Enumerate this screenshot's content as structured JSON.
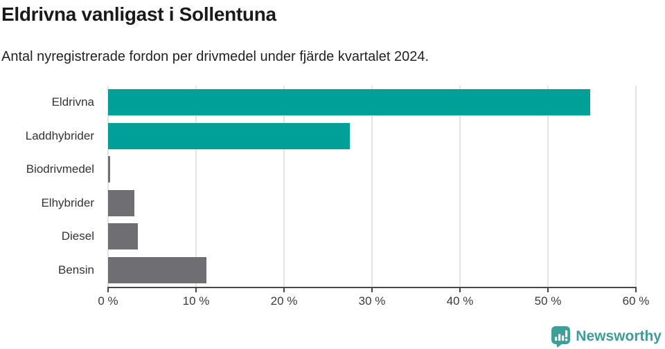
{
  "header": {
    "title": "Eldrivna vanligast i Sollentuna",
    "subtitle": "Antal nyregistrerade fordon per drivmedel under fjärde kvartalet 2024."
  },
  "chart_data": {
    "type": "bar",
    "orientation": "horizontal",
    "title": "Eldrivna vanligast i Sollentuna",
    "subtitle": "Antal nyregistrerade fordon per drivmedel under fjärde kvartalet 2024.",
    "categories": [
      "Eldrivna",
      "Laddhybrider",
      "Biodrivmedel",
      "Elhybrider",
      "Diesel",
      "Bensin"
    ],
    "values": [
      54.8,
      27.5,
      0.2,
      3.0,
      3.4,
      11.2
    ],
    "unit": "%",
    "xlabel": "",
    "ylabel": "",
    "xlim": [
      0,
      60
    ],
    "x_ticks": [
      0,
      10,
      20,
      30,
      40,
      50,
      60
    ],
    "x_tick_labels": [
      "0 %",
      "10 %",
      "20 %",
      "30 %",
      "40 %",
      "50 %",
      "60 %"
    ],
    "bar_colors": [
      "#00a098",
      "#00a098",
      "#6e6e73",
      "#6e6e73",
      "#6e6e73",
      "#6e6e73"
    ],
    "grid": "vertical-only",
    "legend": "none"
  },
  "colors": {
    "teal": "#00a098",
    "gray": "#6e6e73",
    "gridline": "#e3e3e3",
    "axis": "#46464b",
    "logo_teal": "#3d9b99"
  },
  "footer": {
    "brand": "Newsworthy"
  }
}
